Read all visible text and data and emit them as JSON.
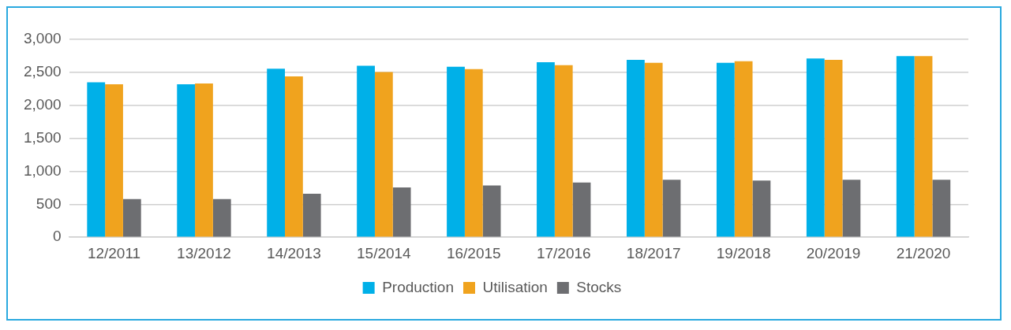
{
  "chart_data": {
    "type": "bar",
    "categories": [
      "12/2011",
      "13/2012",
      "14/2013",
      "15/2014",
      "16/2015",
      "17/2016",
      "18/2017",
      "19/2018",
      "20/2019",
      "21/2020"
    ],
    "series": [
      {
        "name": "Production",
        "color": "#00b0e8",
        "values": [
          2350,
          2320,
          2555,
          2600,
          2585,
          2655,
          2690,
          2645,
          2710,
          2745
        ]
      },
      {
        "name": "Utilisation",
        "color": "#f0a31e",
        "values": [
          2320,
          2330,
          2440,
          2505,
          2550,
          2610,
          2645,
          2670,
          2690,
          2745
        ]
      },
      {
        "name": "Stocks",
        "color": "#6d6e71",
        "values": [
          580,
          580,
          660,
          755,
          785,
          830,
          870,
          860,
          870,
          870
        ]
      }
    ],
    "ylim": [
      0,
      3000
    ],
    "yticks": [
      {
        "value": 0,
        "label": "0"
      },
      {
        "value": 500,
        "label": "500"
      },
      {
        "value": 1000,
        "label": "1,000"
      },
      {
        "value": 1500,
        "label": "1,500"
      },
      {
        "value": 2000,
        "label": "2,000"
      },
      {
        "value": 2500,
        "label": "2,500"
      },
      {
        "value": 3000,
        "label": "3,000"
      }
    ],
    "grid": "y",
    "legend": "bottom"
  }
}
